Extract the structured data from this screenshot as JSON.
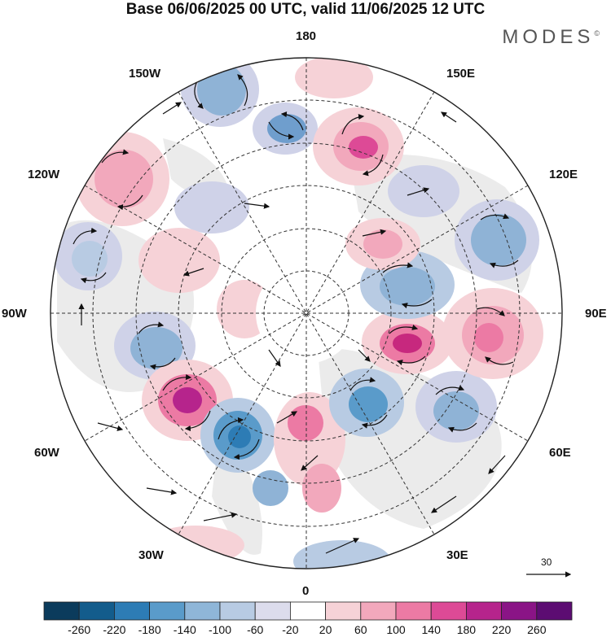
{
  "title": "Base 06/06/2025 00 UTC, valid 11/06/2025 12 UTC",
  "brand": "MODES",
  "brand_mark": "©",
  "lon_labels": {
    "top": "180",
    "bottom": "0",
    "left": "90W",
    "right": "90E",
    "l150": "150W",
    "r150": "150E",
    "l120": "120W",
    "r120": "120E",
    "l60": "60W",
    "r60": "60E",
    "l30": "30W",
    "r30": "30E"
  },
  "vector_scale": "30",
  "colorbar": {
    "labels": [
      "-260",
      "-220",
      "-180",
      "-140",
      "-100",
      "-60",
      "-20",
      "20",
      "60",
      "100",
      "140",
      "180",
      "220",
      "260"
    ],
    "colors": [
      "#0b3b5c",
      "#135c8c",
      "#2d7cb5",
      "#5a9bca",
      "#8fb6d8",
      "#b8cbe3",
      "#dcdcec",
      "#ffffff",
      "#f6d2d7",
      "#f2a8bc",
      "#ec7aa4",
      "#dd4a96",
      "#b6248c",
      "#8a1486",
      "#5c0c72"
    ]
  },
  "anomaly_colors": {
    "positive": "#f0a0b8",
    "strong_positive": "#d6398f",
    "negative": "#8fb3d6",
    "strong_negative": "#3d82bd",
    "weak_negative": "#cfd2e8",
    "land": "#ececec"
  }
}
